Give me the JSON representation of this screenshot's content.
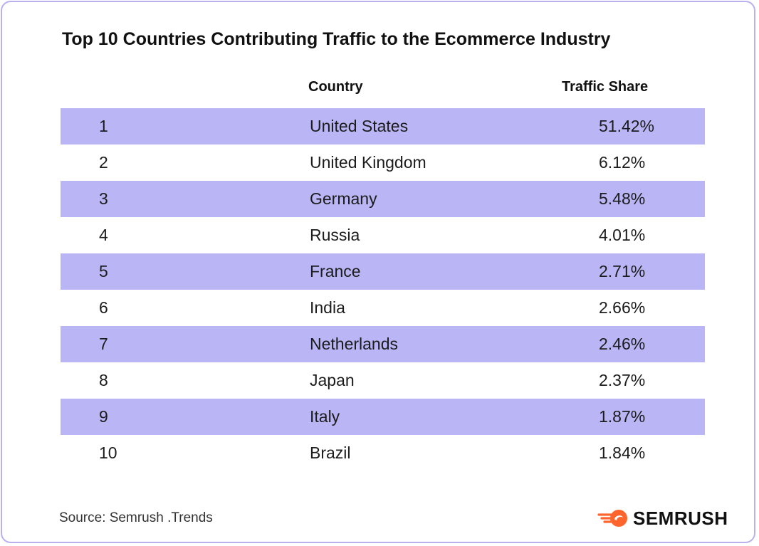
{
  "title": "Top 10 Countries Contributing Traffic to the Ecommerce Industry",
  "headers": {
    "country": "Country",
    "share": "Traffic Share"
  },
  "rows": [
    {
      "rank": "1",
      "country": "United States",
      "share": "51.42%"
    },
    {
      "rank": "2",
      "country": "United Kingdom",
      "share": "6.12%"
    },
    {
      "rank": "3",
      "country": "Germany",
      "share": "5.48%"
    },
    {
      "rank": "4",
      "country": "Russia",
      "share": "4.01%"
    },
    {
      "rank": "5",
      "country": "France",
      "share": "2.71%"
    },
    {
      "rank": "6",
      "country": "India",
      "share": "2.66%"
    },
    {
      "rank": "7",
      "country": "Netherlands",
      "share": "2.46%"
    },
    {
      "rank": "8",
      "country": "Japan",
      "share": "2.37%"
    },
    {
      "rank": "9",
      "country": "Italy",
      "share": "1.87%"
    },
    {
      "rank": "10",
      "country": "Brazil",
      "share": "1.84%"
    }
  ],
  "source": "Source: Semrush .Trends",
  "brand": {
    "name": "SEMRUSH",
    "icon": "semrush-fireball-icon",
    "accent": "#ff642d"
  },
  "colors": {
    "row_shade": "#bab5f5",
    "border": "#b9b0ee"
  },
  "chart_data": {
    "type": "table",
    "title": "Top 10 Countries Contributing Traffic to the Ecommerce Industry",
    "columns": [
      "",
      "Country",
      "Traffic Share"
    ],
    "rows": [
      [
        "1",
        "United States",
        "51.42%"
      ],
      [
        "2",
        "United Kingdom",
        "6.12%"
      ],
      [
        "3",
        "Germany",
        "5.48%"
      ],
      [
        "4",
        "Russia",
        "4.01%"
      ],
      [
        "5",
        "France",
        "2.71%"
      ],
      [
        "6",
        "India",
        "2.66%"
      ],
      [
        "7",
        "Netherlands",
        "2.46%"
      ],
      [
        "8",
        "Japan",
        "2.37%"
      ],
      [
        "9",
        "Italy",
        "1.87%"
      ],
      [
        "10",
        "Brazil",
        "1.84%"
      ]
    ],
    "categories": [
      "United States",
      "United Kingdom",
      "Germany",
      "Russia",
      "France",
      "India",
      "Netherlands",
      "Japan",
      "Italy",
      "Brazil"
    ],
    "values": [
      51.42,
      6.12,
      5.48,
      4.01,
      2.71,
      2.66,
      2.46,
      2.37,
      1.87,
      1.84
    ]
  }
}
